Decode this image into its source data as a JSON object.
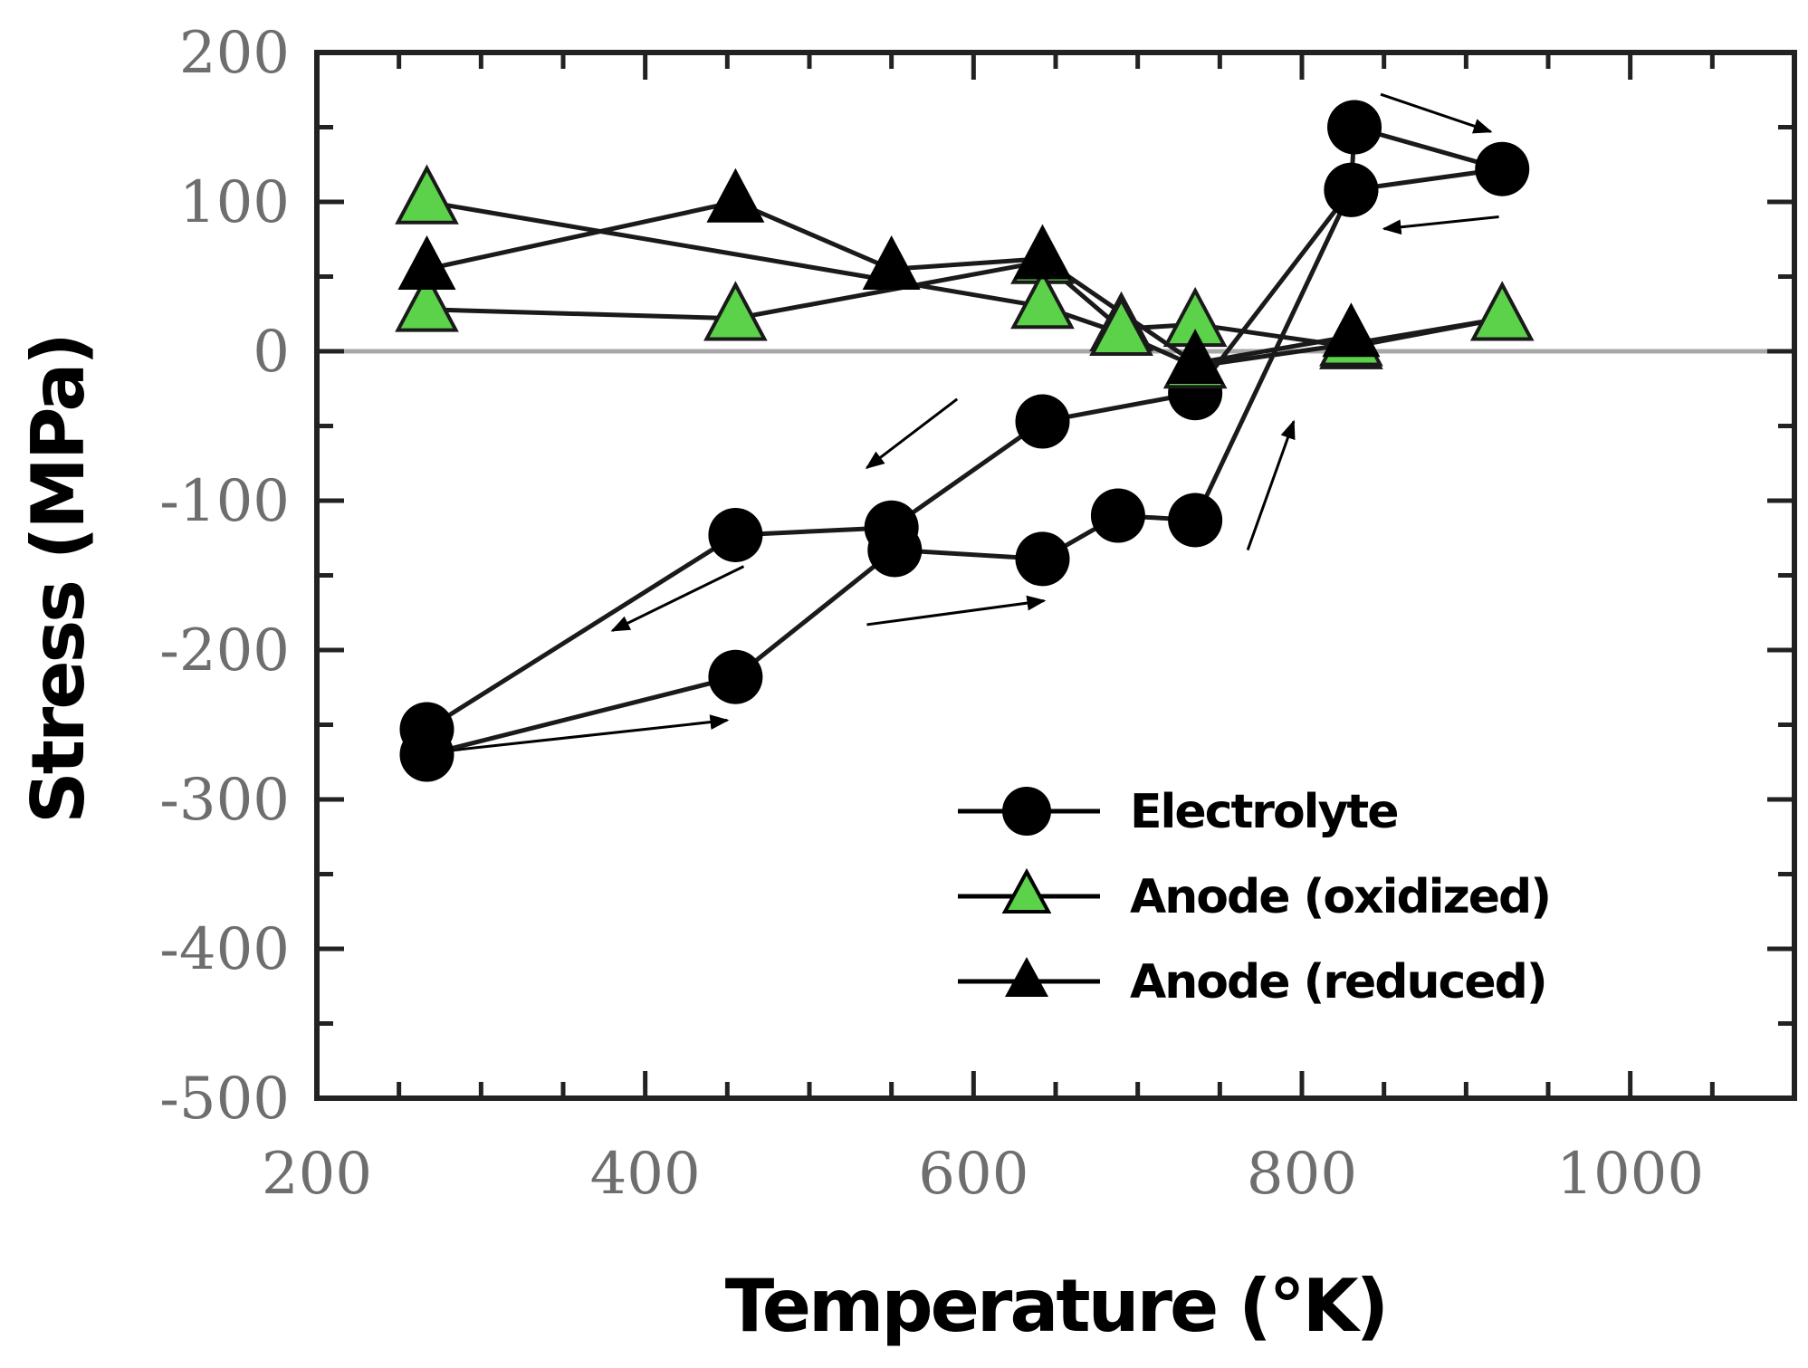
{
  "chart_data": {
    "type": "line",
    "title": "",
    "xlabel": "Temperature (°K)",
    "ylabel": "Stress (MPa)",
    "xlim": [
      200,
      1100
    ],
    "ylim": [
      -500,
      200
    ],
    "xticks": [
      200,
      400,
      600,
      800,
      1000
    ],
    "yticks": [
      200,
      100,
      0,
      -100,
      -200,
      -300,
      -400,
      -500
    ],
    "xtick_labels": [
      "200",
      "400",
      "600",
      "800",
      "1000"
    ],
    "ytick_labels": [
      "200",
      "100",
      "0",
      "-100",
      "-200",
      "-300",
      "-400",
      "-500"
    ],
    "zero_line": true,
    "series": [
      {
        "name": "Electrolyte",
        "marker": "circle",
        "color": "#000000",
        "x": [
          267,
          455,
          552,
          642,
          688,
          735,
          830,
          832,
          922,
          830,
          735,
          642,
          550,
          455,
          267
        ],
        "y": [
          -270,
          -218,
          -133,
          -139,
          -110,
          -113,
          108,
          150,
          122,
          108,
          -28,
          -47,
          -118,
          -123,
          -253
        ]
      },
      {
        "name": "Anode (oxidized)",
        "marker": "triangle",
        "color": "#5cd14a",
        "x": [
          267,
          455,
          642,
          690,
          735,
          830,
          922,
          830,
          735,
          690,
          642,
          267
        ],
        "y": [
          28,
          22,
          60,
          15,
          18,
          3,
          22,
          5,
          -10,
          12,
          30,
          100
        ]
      },
      {
        "name": "Anode (reduced)",
        "marker": "triangle",
        "color": "#000000",
        "x": [
          267,
          455,
          550,
          642,
          735,
          830
        ],
        "y": [
          55,
          100,
          55,
          62,
          -8,
          10
        ]
      }
    ],
    "arrows": [
      {
        "from": [
          535,
          -183
        ],
        "to": [
          643,
          -167
        ]
      },
      {
        "from": [
          275,
          -268
        ],
        "to": [
          450,
          -247
        ]
      },
      {
        "from": [
          590,
          -32
        ],
        "to": [
          535,
          -78
        ]
      },
      {
        "from": [
          460,
          -144
        ],
        "to": [
          380,
          -187
        ]
      },
      {
        "from": [
          767,
          -133
        ],
        "to": [
          795,
          -47
        ]
      },
      {
        "from": [
          848,
          172
        ],
        "to": [
          915,
          147
        ]
      },
      {
        "from": [
          920,
          90
        ],
        "to": [
          850,
          82
        ]
      }
    ],
    "legend": {
      "position": "bottom-right",
      "entries": [
        "Electrolyte",
        "Anode (oxidized)",
        "Anode (reduced)"
      ]
    }
  }
}
